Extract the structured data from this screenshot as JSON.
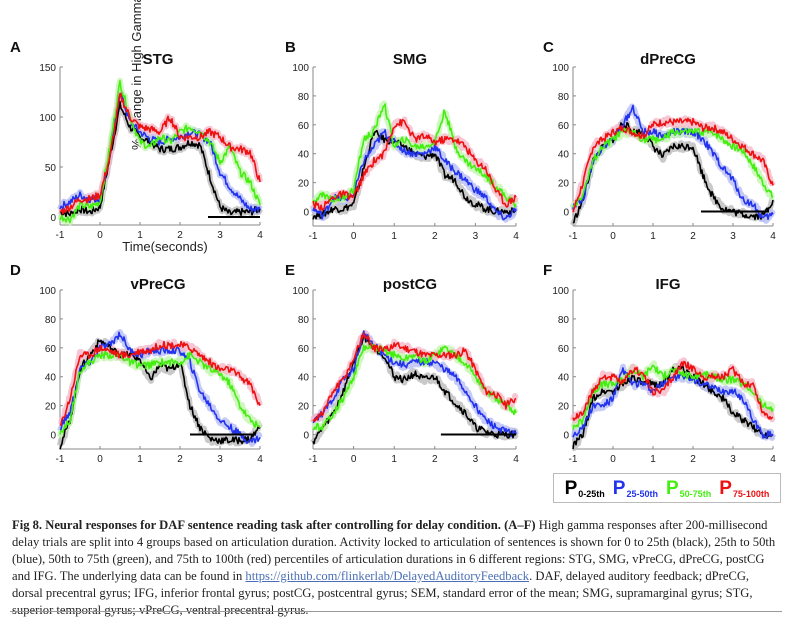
{
  "figure": {
    "y_axis_label": "% Change in High Gamma",
    "x_axis_label": "Time(seconds)"
  },
  "legend": [
    {
      "letter": "P",
      "sub": "0-25th",
      "color": "#000000"
    },
    {
      "letter": "P",
      "sub": "25-50th",
      "color": "#2233ee"
    },
    {
      "letter": "P",
      "sub": "50-75th",
      "color": "#44ee11"
    },
    {
      "letter": "P",
      "sub": "75-100th",
      "color": "#ee1111"
    }
  ],
  "caption": {
    "bold": "Fig 8. Neural responses for DAF sentence reading task after controlling for delay condition.",
    "panels": "(A–F)",
    "text1": "High gamma responses after 200-millisecond delay trials are split into 4 groups based on articulation duration. Activity locked to articulation of sentences is shown for 0 to 25th (black), 25th to 50th (blue), 50th to 75th (green), and 75th to 100th (red) percentiles of articulation durations in 6 different regions: STG, SMG, vPreCG, dPreCG, postCG and IFG. The underlying data can be found in",
    "link": "https://github.com/flinkerlab/DelayedAuditoryFeedback",
    "text2": ". DAF, delayed auditory feedback; dPreCG, dorsal precentral gyrus; IFG, inferior frontal gyrus; postCG, postcentral gyrus; SEM, standard error of the mean; SMG, supramarginal gyrus; STG, superior temporal gyrus; vPreCG, ventral precentral gyrus."
  },
  "chart_data": [
    {
      "type": "line",
      "panel": "A",
      "title": "STG",
      "xlim": [
        -1,
        4
      ],
      "ylim": [
        -8,
        150
      ],
      "xticks": [
        -1,
        0,
        1,
        2,
        3,
        4
      ],
      "yticks": [
        0,
        50,
        100,
        150
      ],
      "sig_bar": [
        2.7,
        4
      ],
      "x": [
        -1,
        -0.75,
        -0.5,
        -0.25,
        0,
        0.25,
        0.5,
        0.75,
        1,
        1.25,
        1.5,
        1.75,
        2,
        2.25,
        2.5,
        2.75,
        3,
        3.25,
        3.5,
        3.75,
        4
      ],
      "series": [
        {
          "name": "0-25th",
          "values": [
            5,
            3,
            8,
            5,
            10,
            60,
            112,
            90,
            80,
            75,
            68,
            68,
            70,
            75,
            72,
            40,
            10,
            3,
            5,
            5,
            8
          ]
        },
        {
          "name": "25-50th",
          "values": [
            10,
            15,
            22,
            18,
            18,
            62,
            125,
            95,
            85,
            78,
            75,
            78,
            80,
            85,
            82,
            75,
            45,
            30,
            18,
            8,
            8
          ]
        },
        {
          "name": "50-75th",
          "values": [
            0,
            -2,
            12,
            10,
            15,
            70,
            135,
            100,
            75,
            70,
            80,
            75,
            85,
            90,
            85,
            75,
            55,
            70,
            45,
            35,
            12
          ]
        },
        {
          "name": "75-100th",
          "values": [
            5,
            10,
            18,
            18,
            22,
            60,
            122,
            100,
            90,
            88,
            85,
            100,
            80,
            80,
            80,
            85,
            80,
            70,
            68,
            65,
            35
          ]
        }
      ]
    },
    {
      "type": "line",
      "panel": "B",
      "title": "SMG",
      "xlim": [
        -1,
        4
      ],
      "ylim": [
        -10,
        100
      ],
      "xticks": [
        -1,
        0,
        1,
        2,
        3,
        4
      ],
      "yticks": [
        0,
        20,
        40,
        60,
        80,
        100
      ],
      "sig_bar": null,
      "x": [
        -1,
        -0.75,
        -0.5,
        -0.25,
        0,
        0.25,
        0.5,
        0.75,
        1,
        1.25,
        1.5,
        1.75,
        2,
        2.25,
        2.5,
        2.75,
        3,
        3.25,
        3.5,
        3.75,
        4
      ],
      "series": [
        {
          "name": "0-25th",
          "values": [
            -3,
            -2,
            2,
            2,
            5,
            30,
            55,
            50,
            48,
            45,
            40,
            38,
            40,
            25,
            22,
            10,
            5,
            2,
            0,
            0,
            0
          ]
        },
        {
          "name": "25-50th",
          "values": [
            2,
            -3,
            10,
            8,
            12,
            35,
            45,
            55,
            48,
            42,
            40,
            40,
            45,
            35,
            28,
            22,
            15,
            10,
            0,
            -5,
            2
          ]
        },
        {
          "name": "50-75th",
          "values": [
            5,
            12,
            8,
            10,
            15,
            50,
            55,
            75,
            45,
            50,
            45,
            45,
            48,
            70,
            45,
            35,
            30,
            25,
            18,
            10,
            5
          ]
        },
        {
          "name": "75-100th",
          "values": [
            5,
            3,
            10,
            12,
            10,
            25,
            35,
            40,
            60,
            62,
            50,
            52,
            48,
            50,
            50,
            45,
            35,
            30,
            15,
            5,
            10
          ]
        }
      ]
    },
    {
      "type": "line",
      "panel": "C",
      "title": "dPreCG",
      "xlim": [
        -1,
        4
      ],
      "ylim": [
        -10,
        100
      ],
      "xticks": [
        -1,
        0,
        1,
        2,
        3,
        4
      ],
      "yticks": [
        0,
        20,
        40,
        60,
        80,
        100
      ],
      "sig_bar": [
        2.2,
        3.9
      ],
      "x": [
        -1,
        -0.75,
        -0.5,
        -0.25,
        0,
        0.25,
        0.5,
        0.75,
        1,
        1.25,
        1.5,
        1.75,
        2,
        2.25,
        2.5,
        2.75,
        3,
        3.25,
        3.5,
        3.75,
        4
      ],
      "series": [
        {
          "name": "0-25th",
          "values": [
            -8,
            8,
            35,
            45,
            50,
            62,
            55,
            55,
            45,
            38,
            45,
            45,
            45,
            25,
            10,
            2,
            0,
            -2,
            -3,
            -3,
            8
          ]
        },
        {
          "name": "25-50th",
          "values": [
            3,
            8,
            35,
            45,
            50,
            60,
            72,
            55,
            55,
            52,
            55,
            55,
            55,
            50,
            40,
            30,
            22,
            8,
            5,
            -5,
            -2
          ]
        },
        {
          "name": "50-75th",
          "values": [
            3,
            12,
            35,
            45,
            50,
            55,
            55,
            50,
            50,
            50,
            55,
            55,
            55,
            55,
            55,
            50,
            45,
            42,
            32,
            20,
            10
          ]
        },
        {
          "name": "75-100th",
          "values": [
            0,
            20,
            45,
            50,
            55,
            58,
            55,
            52,
            60,
            62,
            62,
            62,
            62,
            58,
            58,
            55,
            50,
            45,
            40,
            35,
            18
          ]
        }
      ]
    },
    {
      "type": "line",
      "panel": "D",
      "title": "vPreCG",
      "xlim": [
        -1,
        4
      ],
      "ylim": [
        -10,
        100
      ],
      "xticks": [
        -1,
        0,
        1,
        2,
        3,
        4
      ],
      "yticks": [
        0,
        20,
        40,
        60,
        80,
        100
      ],
      "sig_bar": [
        2.25,
        3.85
      ],
      "x": [
        -1,
        -0.75,
        -0.5,
        -0.25,
        0,
        0.25,
        0.5,
        0.75,
        1,
        1.25,
        1.5,
        1.75,
        2,
        2.25,
        2.5,
        2.75,
        3,
        3.25,
        3.5,
        3.75,
        4
      ],
      "series": [
        {
          "name": "0-25th",
          "values": [
            -8,
            10,
            45,
            55,
            65,
            60,
            55,
            55,
            52,
            38,
            48,
            45,
            50,
            20,
            5,
            -3,
            -4,
            -4,
            -4,
            -3,
            5
          ]
        },
        {
          "name": "25-50th",
          "values": [
            5,
            15,
            45,
            50,
            60,
            62,
            70,
            58,
            55,
            58,
            58,
            58,
            58,
            50,
            30,
            20,
            10,
            5,
            0,
            -5,
            -2
          ]
        },
        {
          "name": "50-75th",
          "values": [
            0,
            10,
            45,
            50,
            55,
            55,
            55,
            50,
            48,
            48,
            50,
            50,
            50,
            55,
            50,
            45,
            42,
            35,
            20,
            10,
            5
          ]
        },
        {
          "name": "75-100th",
          "values": [
            5,
            25,
            55,
            55,
            60,
            58,
            55,
            55,
            58,
            58,
            62,
            62,
            62,
            60,
            55,
            50,
            45,
            45,
            40,
            35,
            20
          ]
        }
      ]
    },
    {
      "type": "line",
      "panel": "E",
      "title": "postCG",
      "xlim": [
        -1,
        4
      ],
      "ylim": [
        -10,
        100
      ],
      "xticks": [
        -1,
        0,
        1,
        2,
        3,
        4
      ],
      "yticks": [
        0,
        20,
        40,
        60,
        80,
        100
      ],
      "sig_bar": [
        2.15,
        4
      ],
      "x": [
        -1,
        -0.75,
        -0.5,
        -0.25,
        0,
        0.25,
        0.5,
        0.75,
        1,
        1.25,
        1.5,
        1.75,
        2,
        2.25,
        2.5,
        2.75,
        3,
        3.25,
        3.5,
        3.75,
        4
      ],
      "series": [
        {
          "name": "0-25th",
          "values": [
            -5,
            5,
            15,
            30,
            50,
            68,
            60,
            55,
            40,
            38,
            42,
            38,
            40,
            30,
            22,
            15,
            5,
            2,
            0,
            0,
            0
          ]
        },
        {
          "name": "25-50th",
          "values": [
            10,
            15,
            25,
            38,
            45,
            70,
            62,
            55,
            50,
            48,
            50,
            50,
            50,
            45,
            40,
            30,
            20,
            10,
            5,
            2,
            0
          ]
        },
        {
          "name": "50-75th",
          "values": [
            5,
            5,
            15,
            25,
            40,
            60,
            60,
            58,
            55,
            52,
            55,
            50,
            55,
            60,
            55,
            50,
            40,
            30,
            25,
            20,
            15
          ]
        },
        {
          "name": "75-100th",
          "values": [
            10,
            15,
            30,
            38,
            52,
            70,
            60,
            58,
            62,
            60,
            58,
            55,
            55,
            55,
            55,
            58,
            45,
            30,
            28,
            20,
            25
          ]
        }
      ]
    },
    {
      "type": "line",
      "panel": "F",
      "title": "IFG",
      "xlim": [
        -1,
        4
      ],
      "ylim": [
        -10,
        100
      ],
      "xticks": [
        -1,
        0,
        1,
        2,
        3,
        4
      ],
      "yticks": [
        0,
        20,
        40,
        60,
        80,
        100
      ],
      "sig_bar": null,
      "x": [
        -1,
        -0.75,
        -0.5,
        -0.25,
        0,
        0.25,
        0.5,
        0.75,
        1,
        1.25,
        1.5,
        1.75,
        2,
        2.25,
        2.5,
        2.75,
        3,
        3.25,
        3.5,
        3.75,
        4
      ],
      "series": [
        {
          "name": "0-25th",
          "values": [
            -8,
            0,
            25,
            30,
            30,
            35,
            40,
            35,
            35,
            35,
            45,
            45,
            40,
            35,
            30,
            25,
            15,
            10,
            5,
            0,
            0
          ]
        },
        {
          "name": "25-50th",
          "values": [
            0,
            5,
            20,
            20,
            25,
            45,
            35,
            35,
            30,
            35,
            40,
            40,
            38,
            35,
            32,
            30,
            30,
            25,
            10,
            0,
            0
          ]
        },
        {
          "name": "50-75th",
          "values": [
            5,
            10,
            30,
            35,
            35,
            38,
            45,
            40,
            48,
            40,
            45,
            42,
            40,
            42,
            40,
            38,
            38,
            35,
            30,
            20,
            18
          ]
        },
        {
          "name": "75-100th",
          "values": [
            10,
            15,
            30,
            40,
            40,
            35,
            45,
            42,
            30,
            30,
            40,
            50,
            45,
            40,
            40,
            40,
            45,
            35,
            35,
            15,
            12
          ]
        }
      ]
    }
  ]
}
